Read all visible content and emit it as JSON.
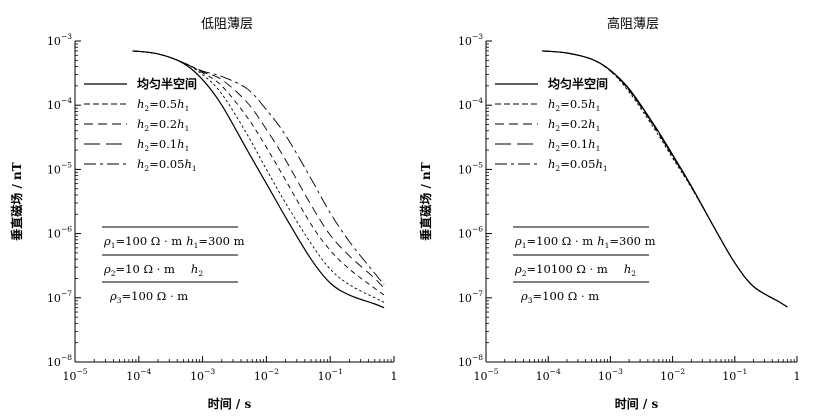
{
  "chart_data": [
    {
      "type": "line",
      "title": "低阻薄层",
      "xlabel": "时间 / s",
      "ylabel": "垂直磁场 / nT",
      "xscale": "log",
      "yscale": "log",
      "xlim": [
        1e-05,
        1
      ],
      "ylim": [
        1e-08,
        0.001
      ],
      "xticks": [
        1e-05,
        0.0001,
        0.001,
        0.01,
        0.1,
        1
      ],
      "yticks": [
        1e-08,
        1e-07,
        1e-06,
        1e-05,
        0.0001,
        0.001
      ],
      "legend_position": "upper-left",
      "series": [
        {
          "name": "均匀半空间",
          "x": [
            8e-05,
            0.0002,
            0.0005,
            0.001,
            0.002,
            0.005,
            0.01,
            0.02,
            0.05,
            0.1,
            0.2,
            0.5,
            0.7
          ],
          "y": [
            0.0007,
            0.00063,
            0.00045,
            0.00025,
            0.0001,
            2e-05,
            6e-06,
            1.8e-06,
            4e-07,
            1.7e-07,
            1.1e-07,
            8e-08,
            7e-08
          ]
        },
        {
          "name": "h2=0.5h1",
          "x": [
            8e-05,
            0.0002,
            0.0005,
            0.001,
            0.002,
            0.005,
            0.01,
            0.02,
            0.05,
            0.1,
            0.2,
            0.5,
            0.7
          ],
          "y": [
            0.0007,
            0.00063,
            0.00046,
            0.0003,
            0.00015,
            3.5e-05,
            1e-05,
            3e-06,
            7e-07,
            2.8e-07,
            1.6e-07,
            1e-07,
            8.5e-08
          ]
        },
        {
          "name": "h2=0.2h1",
          "x": [
            8e-05,
            0.0002,
            0.0005,
            0.001,
            0.002,
            0.005,
            0.01,
            0.02,
            0.05,
            0.1,
            0.2,
            0.5,
            0.7
          ],
          "y": [
            0.0007,
            0.00063,
            0.00046,
            0.00032,
            0.0002,
            6.5e-05,
            2.2e-05,
            6.8e-06,
            1.4e-06,
            5.5e-07,
            2.8e-07,
            1.4e-07,
            1.1e-07
          ]
        },
        {
          "name": "h2=0.1h1",
          "x": [
            8e-05,
            0.0002,
            0.0005,
            0.001,
            0.002,
            0.005,
            0.01,
            0.02,
            0.05,
            0.1,
            0.2,
            0.5,
            0.7
          ],
          "y": [
            0.0007,
            0.00063,
            0.00046,
            0.00033,
            0.00025,
            0.00011,
            4.2e-05,
            1.4e-05,
            2.8e-06,
            9.5e-07,
            4.5e-07,
            2e-07,
            1.4e-07
          ]
        },
        {
          "name": "h2=0.05h1",
          "x": [
            8e-05,
            0.0002,
            0.0005,
            0.001,
            0.002,
            0.005,
            0.01,
            0.02,
            0.05,
            0.1,
            0.2,
            0.5,
            0.7
          ],
          "y": [
            0.0007,
            0.00063,
            0.00046,
            0.00034,
            0.00028,
            0.00018,
            8.5e-05,
            3.4e-05,
            7.2e-06,
            2.1e-06,
            7.5e-07,
            2.4e-07,
            1.6e-07
          ]
        }
      ],
      "model": {
        "row1": {
          "rho": "ρ",
          "sub_a": "1",
          "text_a": "=100 Ω · m",
          "h": "h",
          "sub_b": "1",
          "text_b": "=300 m"
        },
        "row2": {
          "rho": "ρ",
          "sub_a": "2",
          "text_a": "=10 Ω · m",
          "h": "h",
          "sub_b": "2"
        },
        "row3": {
          "rho": "ρ",
          "sub_a": "3",
          "text_a": "=100 Ω · m"
        }
      }
    },
    {
      "type": "line",
      "title": "高阻薄层",
      "xlabel": "时间 / s",
      "ylabel": "垂直磁场 / nT",
      "xscale": "log",
      "yscale": "log",
      "xlim": [
        1e-05,
        1
      ],
      "ylim": [
        1e-08,
        0.001
      ],
      "xticks": [
        1e-05,
        0.0001,
        0.001,
        0.01,
        0.1,
        1
      ],
      "yticks": [
        1e-08,
        1e-07,
        1e-06,
        1e-05,
        0.0001,
        0.001
      ],
      "legend_position": "upper-left",
      "series": [
        {
          "name": "均匀半空间",
          "x": [
            8e-05,
            0.0002,
            0.0005,
            0.001,
            0.002,
            0.005,
            0.01,
            0.02,
            0.05,
            0.1,
            0.2,
            0.5,
            0.7
          ],
          "y": [
            0.0007,
            0.00065,
            0.00052,
            0.00035,
            0.00018,
            5e-05,
            1.7e-05,
            5.5e-06,
            1.1e-06,
            3.5e-07,
            1.5e-07,
            8.8e-08,
            7.2e-08
          ]
        },
        {
          "name": "h2=0.5h1",
          "x": [
            8e-05,
            0.0002,
            0.0005,
            0.001,
            0.002,
            0.005,
            0.01,
            0.02,
            0.05,
            0.1,
            0.2,
            0.5,
            0.7
          ],
          "y": [
            0.0007,
            0.00065,
            0.00052,
            0.00034,
            0.00016,
            4.4e-05,
            1.5e-05,
            5.2e-06,
            1.1e-06,
            3.5e-07,
            1.5e-07,
            8.8e-08,
            7.2e-08
          ]
        },
        {
          "name": "h2=0.2h1",
          "x": [
            8e-05,
            0.0002,
            0.0005,
            0.001,
            0.002,
            0.005,
            0.01,
            0.02,
            0.05,
            0.1,
            0.2,
            0.5,
            0.7
          ],
          "y": [
            0.0007,
            0.00065,
            0.00052,
            0.00034,
            0.00017,
            4.7e-05,
            1.6e-05,
            5.3e-06,
            1.1e-06,
            3.5e-07,
            1.5e-07,
            8.8e-08,
            7.2e-08
          ]
        },
        {
          "name": "h2=0.1h1",
          "x": [
            8e-05,
            0.0002,
            0.0005,
            0.001,
            0.002,
            0.005,
            0.01,
            0.02,
            0.05,
            0.1,
            0.2,
            0.5,
            0.7
          ],
          "y": [
            0.0007,
            0.00065,
            0.00052,
            0.00035,
            0.00017,
            4.8e-05,
            1.6e-05,
            5.4e-06,
            1.1e-06,
            3.5e-07,
            1.5e-07,
            8.8e-08,
            7.2e-08
          ]
        },
        {
          "name": "h2=0.05h1",
          "x": [
            8e-05,
            0.0002,
            0.0005,
            0.001,
            0.002,
            0.005,
            0.01,
            0.02,
            0.05,
            0.1,
            0.2,
            0.5,
            0.7
          ],
          "y": [
            0.0007,
            0.00065,
            0.00052,
            0.00035,
            0.000175,
            4.9e-05,
            1.65e-05,
            5.5e-06,
            1.1e-06,
            3.5e-07,
            1.5e-07,
            8.8e-08,
            7.2e-08
          ]
        }
      ],
      "model": {
        "row1": {
          "rho": "ρ",
          "sub_a": "1",
          "text_a": "=100 Ω · m",
          "h": "h",
          "sub_b": "1",
          "text_b": "=300 m"
        },
        "row2": {
          "rho": "ρ",
          "sub_a": "2",
          "text_a": "=10100 Ω · m",
          "h": "h",
          "sub_b": "2"
        },
        "row3": {
          "rho": "ρ",
          "sub_a": "3",
          "text_a": "=100 Ω · m"
        }
      }
    }
  ],
  "legend": [
    {
      "label": "均匀半空间",
      "dash": "solid"
    },
    {
      "pre": "h",
      "sub1": "2",
      "mid": "=0.5",
      "h": "h",
      "sub2": "1",
      "dash": "6,3"
    },
    {
      "pre": "h",
      "sub1": "2",
      "mid": "=0.2",
      "h": "h",
      "sub2": "1",
      "dash": "9,5"
    },
    {
      "pre": "h",
      "sub1": "2",
      "mid": "=0.1",
      "h": "h",
      "sub2": "1",
      "dash": "16,6"
    },
    {
      "pre": "h",
      "sub1": "2",
      "mid": "=0.05",
      "h": "h",
      "sub2": "1",
      "dash": "12,4,3,4"
    }
  ],
  "tick_labels": {
    "x": [
      {
        "base": "10",
        "exp": "−5"
      },
      {
        "base": "10",
        "exp": "−4"
      },
      {
        "base": "10",
        "exp": "−3"
      },
      {
        "base": "10",
        "exp": "−2"
      },
      {
        "base": "10",
        "exp": "−1"
      },
      {
        "base": "1",
        "exp": ""
      }
    ],
    "y": [
      {
        "base": "10",
        "exp": "−8"
      },
      {
        "base": "10",
        "exp": "−7"
      },
      {
        "base": "10",
        "exp": "−6"
      },
      {
        "base": "10",
        "exp": "−5"
      },
      {
        "base": "10",
        "exp": "−4"
      },
      {
        "base": "10",
        "exp": "−3"
      }
    ]
  }
}
